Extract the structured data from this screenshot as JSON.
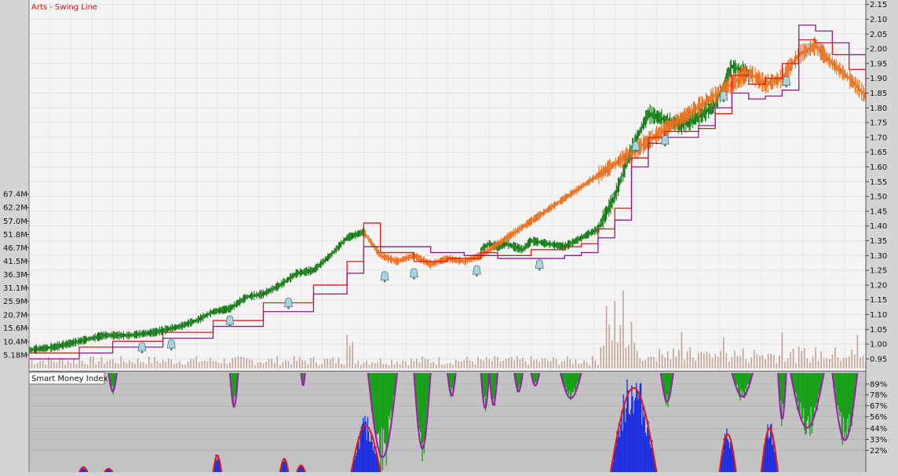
{
  "chart_data": [
    {
      "type": "line",
      "title": "Arts - Swing Line",
      "y_axis_side": "right",
      "ylim": [
        0.91,
        2.165
      ],
      "yticks": [
        0.95,
        1.0,
        1.05,
        1.1,
        1.15,
        1.2,
        1.25,
        1.3,
        1.35,
        1.4,
        1.45,
        1.5,
        1.55,
        1.6,
        1.65,
        1.7,
        1.75,
        1.8,
        1.85,
        1.9,
        1.95,
        2.0,
        2.05,
        2.1,
        2.15
      ],
      "ytick_labels": [
        "0.95",
        "1.00",
        "1.05",
        "1.10",
        "1.15",
        "1.20",
        "1.25",
        "1.30",
        "1.35",
        "1.40",
        "1.45",
        "1.50",
        "1.55",
        "1.60",
        "1.65",
        "1.70",
        "1.75",
        "1.80",
        "1.85",
        "1.90",
        "1.95",
        "2.00",
        "2.05",
        "2.10",
        "2.15"
      ],
      "x_index_range": [
        0,
        100
      ],
      "grid": true,
      "series": [
        {
          "color": "#157a15",
          "x": [
            0,
            3,
            6,
            9,
            12,
            15,
            18,
            20,
            22,
            24,
            26,
            28,
            30,
            32,
            34,
            36,
            38,
            40,
            42,
            44,
            46,
            48,
            50,
            52,
            54,
            55,
            56,
            57,
            58,
            59,
            60,
            62,
            64,
            66,
            68,
            70,
            72,
            74,
            76,
            78,
            80,
            82,
            84,
            86,
            88,
            90,
            92,
            94,
            96,
            98,
            100
          ],
          "values": [
            0.98,
            0.99,
            1.01,
            1.03,
            1.03,
            1.04,
            1.06,
            1.08,
            1.11,
            1.12,
            1.16,
            1.17,
            1.2,
            1.24,
            1.25,
            1.3,
            1.36,
            1.38,
            1.27,
            1.29,
            1.27,
            1.29,
            1.28,
            1.29,
            1.32,
            1.34,
            1.33,
            1.34,
            1.33,
            1.32,
            1.35,
            1.34,
            1.33,
            1.36,
            1.39,
            1.5,
            1.66,
            1.78,
            1.76,
            1.74,
            1.77,
            1.81,
            1.94,
            1.92,
            1.88,
            1.9,
            2.15,
            2.0,
            1.95,
            1.9,
            1.93
          ]
        },
        {
          "color": "#e8711f",
          "x": [
            40,
            42,
            44,
            46,
            48,
            50,
            52,
            54,
            86,
            88,
            90,
            92,
            94,
            96,
            98,
            100
          ],
          "values": [
            1.38,
            1.3,
            1.28,
            1.3,
            1.27,
            1.29,
            1.28,
            1.3,
            1.92,
            1.88,
            1.9,
            1.98,
            2.01,
            1.95,
            1.9,
            1.84
          ]
        },
        {
          "color": "#e01818",
          "x": [
            0,
            6,
            10,
            16,
            22,
            28,
            34,
            38,
            40,
            42,
            44,
            46,
            48,
            50,
            52,
            54,
            56,
            60,
            64,
            66,
            68,
            70,
            72,
            74,
            76,
            78,
            80,
            82,
            84,
            86,
            88,
            90,
            92,
            94,
            96,
            98,
            100
          ],
          "values": [
            0.97,
            0.99,
            1.01,
            1.04,
            1.08,
            1.14,
            1.2,
            1.28,
            1.41,
            1.31,
            1.31,
            1.28,
            1.28,
            1.29,
            1.29,
            1.31,
            1.3,
            1.32,
            1.33,
            1.34,
            1.39,
            1.46,
            1.63,
            1.7,
            1.72,
            1.72,
            1.73,
            1.78,
            1.91,
            1.88,
            1.9,
            1.95,
            2.03,
            2.02,
            1.98,
            1.93,
            1.83
          ]
        },
        {
          "color": "#8e1a8e",
          "x": [
            0,
            6,
            10,
            16,
            22,
            28,
            34,
            38,
            40,
            44,
            48,
            52,
            56,
            60,
            64,
            66,
            68,
            70,
            72,
            74,
            76,
            78,
            80,
            82,
            84,
            86,
            88,
            90,
            92,
            94,
            96,
            98,
            100
          ],
          "values": [
            0.95,
            0.97,
            0.99,
            1.02,
            1.06,
            1.11,
            1.17,
            1.24,
            1.33,
            1.33,
            1.31,
            1.3,
            1.29,
            1.29,
            1.3,
            1.31,
            1.36,
            1.42,
            1.6,
            1.68,
            1.7,
            1.7,
            1.74,
            1.8,
            1.85,
            1.83,
            1.84,
            1.86,
            2.08,
            2.06,
            2.02,
            1.98,
            1.87
          ]
        }
      ],
      "signal_icon": "bell-icon",
      "signals": [
        {
          "x": 13.5,
          "y": 0.99
        },
        {
          "x": 17,
          "y": 1.0
        },
        {
          "x": 24,
          "y": 1.08
        },
        {
          "x": 31,
          "y": 1.14
        },
        {
          "x": 42.5,
          "y": 1.23
        },
        {
          "x": 46,
          "y": 1.24
        },
        {
          "x": 53.5,
          "y": 1.25
        },
        {
          "x": 61,
          "y": 1.27
        },
        {
          "x": 72.5,
          "y": 1.67
        },
        {
          "x": 76,
          "y": 1.69
        },
        {
          "x": 83,
          "y": 1.84
        },
        {
          "x": 90.5,
          "y": 1.89
        }
      ]
    },
    {
      "type": "bar",
      "title": "",
      "y_axis_side": "left",
      "ylim": [
        0,
        72.6
      ],
      "yticks": [
        5.18,
        10.4,
        15.6,
        20.7,
        25.9,
        31.1,
        36.3,
        41.5,
        46.7,
        51.8,
        57.0,
        62.2,
        67.4
      ],
      "ytick_labels": [
        "5.18M",
        "10.4M",
        "15.6M",
        "20.7M",
        "25.9M",
        "31.1M",
        "36.3M",
        "41.5M",
        "46.7M",
        "51.8M",
        "57.0M",
        "62.2M",
        "67.4M"
      ],
      "color": "#c2a393",
      "x_index_range": [
        0,
        100
      ],
      "base": 4,
      "spikes": [
        {
          "x": 38,
          "value": 13
        },
        {
          "x": 69,
          "value": 24
        },
        {
          "x": 70,
          "value": 26
        },
        {
          "x": 71,
          "value": 30
        },
        {
          "x": 72,
          "value": 18
        },
        {
          "x": 78,
          "value": 14
        },
        {
          "x": 83,
          "value": 12
        },
        {
          "x": 90,
          "value": 14
        },
        {
          "x": 99,
          "value": 13
        }
      ]
    },
    {
      "type": "bar",
      "title": "Smart Money Index",
      "y_axis_side": "right",
      "ylim": [
        0,
        100
      ],
      "yticks": [
        22,
        33,
        44,
        56,
        67,
        78,
        89
      ],
      "ytick_labels": [
        "22%",
        "33%",
        "44%",
        "56%",
        "67%",
        "78%",
        "89%"
      ],
      "series": [
        {
          "color": "#14a014",
          "segments": [
            {
              "x": [
                9.5,
                10.5
              ],
              "depth": 22
            },
            {
              "x": [
                24,
                25
              ],
              "depth": 40
            },
            {
              "x": [
                32.5,
                33
              ],
              "depth": 15
            },
            {
              "x": [
                40.5,
                44
              ],
              "depth": 100
            },
            {
              "x": [
                46,
                48
              ],
              "depth": 90
            },
            {
              "x": [
                50,
                51
              ],
              "depth": 27
            },
            {
              "x": [
                54,
                55
              ],
              "depth": 42
            },
            {
              "x": [
                55,
                56
              ],
              "depth": 38
            },
            {
              "x": [
                58,
                59
              ],
              "depth": 22
            },
            {
              "x": [
                60,
                61
              ],
              "depth": 15
            },
            {
              "x": [
                63.5,
                66
              ],
              "depth": 30
            },
            {
              "x": [
                75.5,
                77
              ],
              "depth": 34
            },
            {
              "x": [
                84,
                86.5
              ],
              "depth": 28
            },
            {
              "x": [
                89.5,
                90.5
              ],
              "depth": 55
            },
            {
              "x": [
                91,
                95
              ],
              "depth": 65
            },
            {
              "x": [
                96,
                99
              ],
              "depth": 80
            }
          ]
        },
        {
          "color": "#1a2ee0",
          "segments": [
            {
              "x": [
                6,
                7
              ],
              "height": 6
            },
            {
              "x": [
                9,
                10
              ],
              "height": 4
            },
            {
              "x": [
                22,
                23
              ],
              "height": 20
            },
            {
              "x": [
                30,
                31
              ],
              "height": 16
            },
            {
              "x": [
                32,
                33
              ],
              "height": 8
            },
            {
              "x": [
                38.5,
                42
              ],
              "height": 55
            },
            {
              "x": [
                69.5,
                75
              ],
              "height": 100
            },
            {
              "x": [
                82.5,
                84.5
              ],
              "height": 45
            },
            {
              "x": [
                87.5,
                89.5
              ],
              "height": 52
            }
          ]
        }
      ]
    }
  ]
}
